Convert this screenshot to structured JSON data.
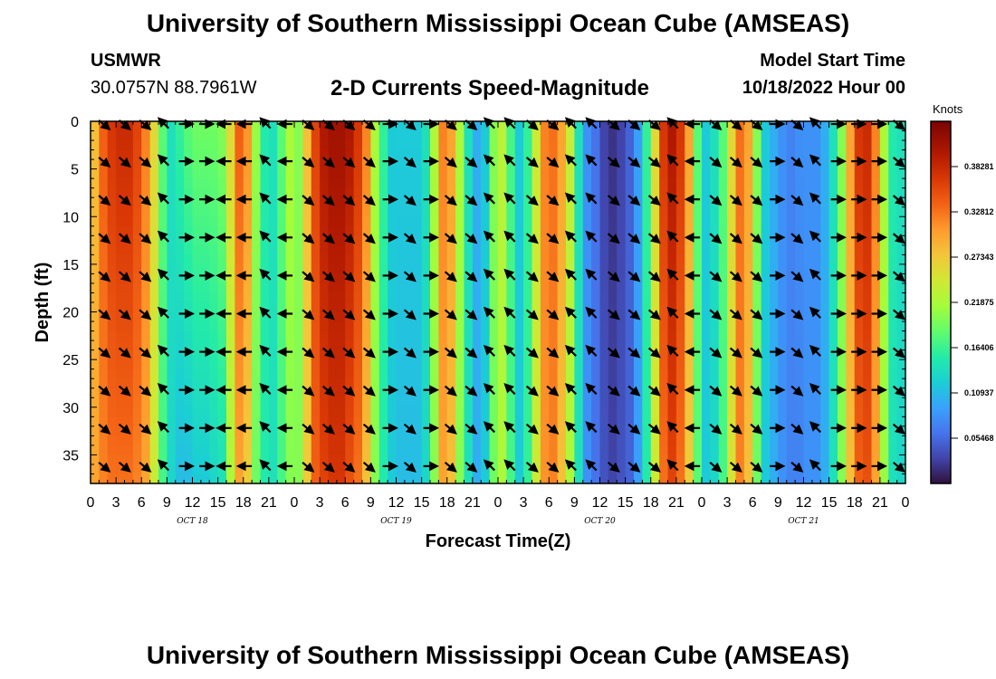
{
  "header": {
    "title": "University of Southern Mississippi Ocean Cube (AMSEAS)",
    "station": "USMWR",
    "coords": "30.0757N  88.7961W",
    "plot_title": "2-D Currents Speed-Magnitude",
    "model_start_label": "Model Start Time",
    "model_start_value": "10/18/2022 Hour 00"
  },
  "footer": {
    "title_repeat": "University of Southern Mississippi Ocean Cube (AMSEAS)"
  },
  "chart_data": {
    "type": "heatmap",
    "title": "2-D Currents Speed-Magnitude",
    "xlabel": "Forecast Time(Z)",
    "ylabel": "Depth (ft)",
    "units": "Knots",
    "x_hours": [
      0,
      96
    ],
    "ylim": [
      0,
      38
    ],
    "x_tick_labels": [
      "0",
      "3",
      "6",
      "9",
      "12",
      "15",
      "18",
      "21",
      "0",
      "3",
      "6",
      "9",
      "12",
      "15",
      "18",
      "21",
      "0",
      "3",
      "6",
      "9",
      "12",
      "15",
      "18",
      "21",
      "0",
      "3",
      "6",
      "9",
      "12",
      "15",
      "18",
      "21",
      "0"
    ],
    "y_ticks": [
      0,
      5,
      10,
      15,
      20,
      25,
      30,
      35
    ],
    "day_labels": [
      "OCT 18",
      "OCT 19",
      "OCT 20",
      "OCT 21"
    ],
    "colorbar": {
      "min": 0.0,
      "max": 0.4375,
      "ticks": [
        0.38281,
        0.32812,
        0.27343,
        0.21875,
        0.16406,
        0.10937,
        0.05468
      ],
      "tick_labels": [
        "0.38281",
        "0.32812",
        "0.27343",
        "0.21875",
        "0.16406",
        "0.10937",
        "0.05468"
      ]
    },
    "speed_by_hour": {
      "hours": [
        0,
        1,
        2,
        3,
        4,
        5,
        6,
        7,
        8,
        9,
        10,
        11,
        12,
        13,
        14,
        15,
        16,
        17,
        18,
        19,
        20,
        21,
        22,
        23,
        24,
        25,
        26,
        27,
        28,
        29,
        30,
        31,
        32,
        33,
        34,
        35,
        36,
        37,
        38,
        39,
        40,
        41,
        42,
        43,
        44,
        45,
        46,
        47,
        48,
        49,
        50,
        51,
        52,
        53,
        54,
        55,
        56,
        57,
        58,
        59,
        60,
        61,
        62,
        63,
        64,
        65,
        66,
        67,
        68,
        69,
        70,
        71,
        72,
        73,
        74,
        75,
        76,
        77,
        78,
        79,
        80,
        81,
        82,
        83,
        84,
        85,
        86,
        87,
        88,
        89,
        90,
        91,
        92,
        93,
        94,
        95,
        96
      ],
      "surface": [
        0.28,
        0.34,
        0.37,
        0.38,
        0.38,
        0.36,
        0.32,
        0.26,
        0.18,
        0.14,
        0.16,
        0.18,
        0.19,
        0.19,
        0.19,
        0.2,
        0.26,
        0.34,
        0.31,
        0.21,
        0.15,
        0.14,
        0.18,
        0.22,
        0.2,
        0.28,
        0.36,
        0.4,
        0.41,
        0.41,
        0.4,
        0.37,
        0.32,
        0.22,
        0.16,
        0.12,
        0.12,
        0.12,
        0.12,
        0.14,
        0.22,
        0.32,
        0.3,
        0.22,
        0.14,
        0.1,
        0.12,
        0.2,
        0.23,
        0.17,
        0.12,
        0.16,
        0.24,
        0.32,
        0.33,
        0.3,
        0.24,
        0.14,
        0.08,
        0.06,
        0.03,
        0.02,
        0.03,
        0.05,
        0.09,
        0.16,
        0.26,
        0.37,
        0.4,
        0.37,
        0.3,
        0.18,
        0.12,
        0.14,
        0.18,
        0.26,
        0.33,
        0.3,
        0.2,
        0.12,
        0.1,
        0.08,
        0.07,
        0.08,
        0.08,
        0.08,
        0.1,
        0.14,
        0.2,
        0.3,
        0.37,
        0.38,
        0.32,
        0.22,
        0.15,
        0.14,
        0.16
      ],
      "bottom": [
        0.3,
        0.32,
        0.33,
        0.33,
        0.33,
        0.32,
        0.3,
        0.24,
        0.17,
        0.13,
        0.11,
        0.11,
        0.12,
        0.12,
        0.13,
        0.14,
        0.22,
        0.3,
        0.27,
        0.19,
        0.15,
        0.14,
        0.17,
        0.2,
        0.2,
        0.27,
        0.34,
        0.36,
        0.37,
        0.37,
        0.35,
        0.33,
        0.28,
        0.2,
        0.15,
        0.12,
        0.11,
        0.11,
        0.11,
        0.13,
        0.2,
        0.3,
        0.28,
        0.2,
        0.14,
        0.1,
        0.12,
        0.19,
        0.22,
        0.17,
        0.12,
        0.16,
        0.24,
        0.31,
        0.32,
        0.28,
        0.22,
        0.14,
        0.08,
        0.06,
        0.04,
        0.03,
        0.04,
        0.05,
        0.09,
        0.15,
        0.24,
        0.33,
        0.36,
        0.33,
        0.27,
        0.18,
        0.12,
        0.13,
        0.17,
        0.25,
        0.32,
        0.28,
        0.19,
        0.12,
        0.1,
        0.08,
        0.07,
        0.07,
        0.08,
        0.08,
        0.1,
        0.14,
        0.2,
        0.28,
        0.34,
        0.35,
        0.3,
        0.21,
        0.14,
        0.13,
        0.15
      ]
    },
    "vector_directions_deg": [
      "SE",
      "SE",
      "SE",
      "NW",
      "E",
      "E",
      "W",
      "W",
      "NW",
      "W",
      "SE",
      "SE",
      "SE",
      "SE",
      "E",
      "SE",
      "E",
      "SE",
      "SE",
      "NW",
      "NW",
      "SE",
      "SE",
      "NW",
      "NW",
      "SE",
      "SE",
      "SE",
      "NW",
      "W",
      "SE",
      "SE",
      "SE",
      "E",
      "SE",
      "NW",
      "E",
      "E",
      "E",
      "SE"
    ]
  }
}
